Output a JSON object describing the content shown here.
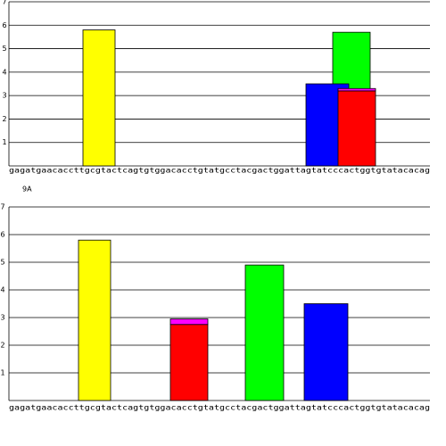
{
  "chart_data": [
    {
      "type": "bar",
      "ylim": [
        0,
        7
      ],
      "yticks": [
        1,
        2,
        3,
        4,
        5,
        6,
        7
      ],
      "grid": true,
      "sequence": "gagatgaacaccttgcgtactcagtgtggacacctgtatgcctacgactggattagtatcccactggtgtatacacag",
      "bars": [
        {
          "segments": [
            {
              "color": "#ffff00",
              "value": 5.8
            }
          ]
        },
        {
          "segments": [
            {
              "color": "#00ff00",
              "value": 5.7
            }
          ]
        },
        {
          "segments": [
            {
              "color": "#0000ff",
              "value": 3.5
            }
          ]
        },
        {
          "segments": [
            {
              "color": "#ff0000",
              "value": 3.2
            },
            {
              "color": "#ff00ff",
              "value": 0.1
            }
          ]
        }
      ]
    },
    {
      "type": "bar",
      "title": "9A",
      "ylim": [
        0,
        7
      ],
      "yticks": [
        1,
        2,
        3,
        4,
        5,
        6,
        7
      ],
      "grid": true,
      "sequence": "gagatgaacaccttgcgtactcagtgtggacacctgtatgcctacgactggattagtatcccactggtgtatacacag",
      "bars": [
        {
          "segments": [
            {
              "color": "#ffff00",
              "value": 5.8
            }
          ]
        },
        {
          "segments": [
            {
              "color": "#ff0000",
              "value": 2.75
            },
            {
              "color": "#ff00ff",
              "value": 0.2
            }
          ]
        },
        {
          "segments": [
            {
              "color": "#00ff00",
              "value": 4.9
            }
          ]
        },
        {
          "segments": [
            {
              "color": "#0000ff",
              "value": 3.5
            }
          ]
        }
      ]
    }
  ]
}
